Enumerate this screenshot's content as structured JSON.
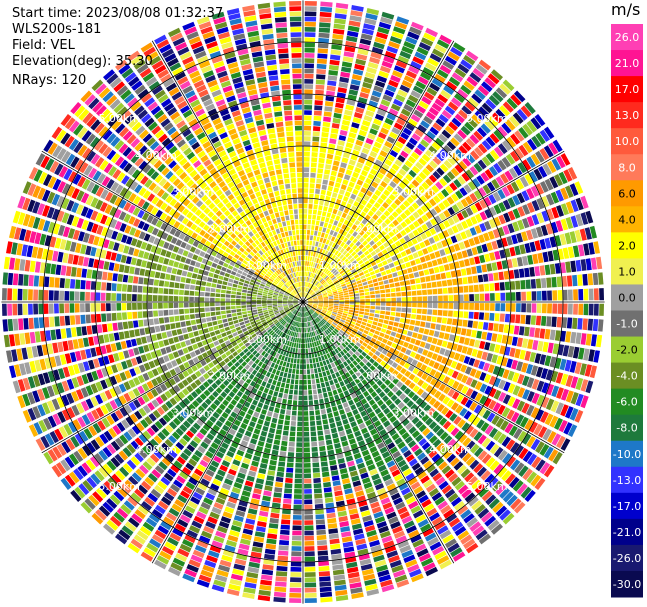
{
  "header": {
    "start_time": "Start time: 2023/08/08 01:32:37",
    "instrument": "WLS200s-181",
    "field": "Field: VEL",
    "elevation": "Elevation(deg): 35.30",
    "nrays": "NRays: 120"
  },
  "colorbar": {
    "unit": "m/s",
    "ticks": [
      "26.0",
      "21.0",
      "17.0",
      "13.0",
      "10.0",
      "8.0",
      "6.0",
      "4.0",
      "2.0",
      "1.0",
      "0.0",
      "-1.0",
      "-2.0",
      "-4.0",
      "-6.0",
      "-8.0",
      "-10.0",
      "-13.0",
      "-17.0",
      "-21.0",
      "-26.0",
      "-30.0"
    ],
    "colors": [
      "#ff3fb4",
      "#ff1493",
      "#ff0000",
      "#ff2a1e",
      "#ff5a3c",
      "#ff7a5a",
      "#ff9a00",
      "#ffb400",
      "#ffff00",
      "#f0f050",
      "#a0a0a0",
      "#707070",
      "#9acd32",
      "#6b8e23",
      "#228b22",
      "#1e7a3c",
      "#1e78c8",
      "#3232ff",
      "#0000cd",
      "#00008b",
      "#191970",
      "#0a0a50"
    ]
  },
  "chart_data": {
    "type": "polar-ppi",
    "variable": "VEL",
    "units": "m/s",
    "nrays": 120,
    "range_rings_km": [
      1.0,
      2.0,
      3.0,
      4.0,
      5.0
    ],
    "ring_labels": [
      "1.00km",
      "2.00km",
      "3.00km",
      "4.00km",
      "5.00km"
    ],
    "max_range_km": 5.8,
    "spoke_angles_deg": [
      0,
      30,
      60,
      90,
      120,
      150,
      180,
      210,
      240,
      270,
      300,
      330
    ],
    "sectors": [
      {
        "from_deg": 300,
        "to_deg": 360,
        "near_km": [
          0.2,
          3.0
        ],
        "value": 3.5,
        "note": "yellow, scattered gray"
      },
      {
        "from_deg": 0,
        "to_deg": 70,
        "near_km": [
          0.2,
          3.0
        ],
        "value": 3.0,
        "note": "yellow with orange patches"
      },
      {
        "from_deg": 70,
        "to_deg": 130,
        "near_km": [
          0.2,
          3.0
        ],
        "value": 5.0,
        "note": "orange/yellow"
      },
      {
        "from_deg": 130,
        "to_deg": 230,
        "near_km": [
          0.2,
          3.5
        ],
        "value": -6.0,
        "note": "green"
      },
      {
        "from_deg": 230,
        "to_deg": 290,
        "near_km": [
          0.2,
          3.0
        ],
        "value": -2.0,
        "note": "light green"
      },
      {
        "from_deg": 290,
        "to_deg": 300,
        "near_km": [
          0.2,
          3.0
        ],
        "value": -1.0,
        "note": "gray"
      }
    ],
    "outer_noise_km": [
      4.0,
      5.8
    ]
  }
}
